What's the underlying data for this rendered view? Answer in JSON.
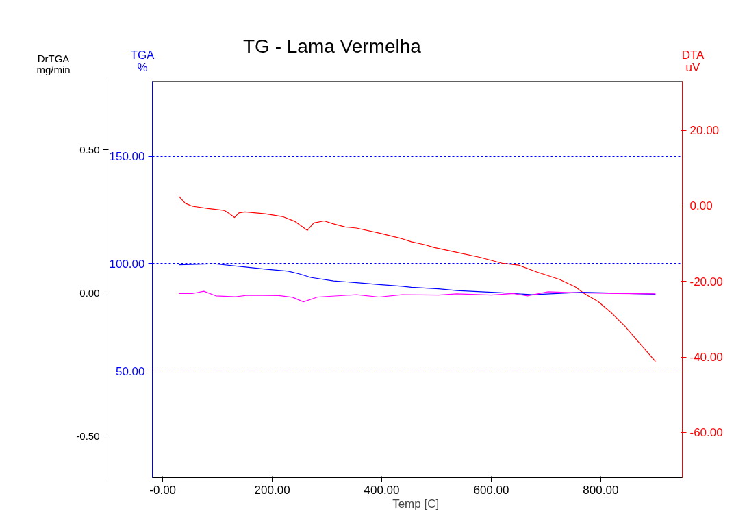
{
  "chart_data": {
    "type": "line",
    "title": "TG - Lama Vermelha",
    "xlabel": "Temp  [C]",
    "ylabel": "TGA\n%",
    "y2label": "DTA\nuV",
    "y3label": "DrTGA\nmg/min",
    "xlim": [
      -19,
      949
    ],
    "xticks": [
      {
        "value": 0,
        "label": "-0.00"
      },
      {
        "value": 200,
        "label": "200.00"
      },
      {
        "value": 400,
        "label": "400.00"
      },
      {
        "value": 600,
        "label": "600.00"
      },
      {
        "value": 800,
        "label": "800.00"
      }
    ],
    "ylim": [
      0.3,
      185
    ],
    "yticks": [
      {
        "value": 50,
        "label": "50.00"
      },
      {
        "value": 100,
        "label": "100.00"
      },
      {
        "value": 150,
        "label": "150.00"
      }
    ],
    "y2lim": [
      -72,
      33
    ],
    "y2ticks": [
      {
        "value": -60,
        "label": "-60.00"
      },
      {
        "value": -40,
        "label": "-40.00"
      },
      {
        "value": -20,
        "label": "-20.00"
      },
      {
        "value": 0,
        "label": "0.00"
      },
      {
        "value": 20,
        "label": "20.00"
      }
    ],
    "y3lim": [
      -0.646,
      0.74
    ],
    "y3ticks": [
      {
        "value": -0.5,
        "label": "-0.50"
      },
      {
        "value": 0,
        "label": "0.00"
      },
      {
        "value": 0.5,
        "label": "0.50"
      }
    ],
    "grid": "y",
    "series": [
      {
        "axis": "y2",
        "color": "#ff0000",
        "x": [
          29.6,
          41,
          54,
          83,
          112,
          122,
          131,
          139,
          150,
          187,
          220,
          241,
          264,
          276,
          295,
          312,
          333,
          354,
          395,
          437,
          454,
          479,
          495,
          537,
          579,
          620,
          650,
          683,
          725,
          754,
          770,
          795,
          820,
          845,
          870,
          900
        ],
        "values": [
          2.5,
          0.7,
          -0.1,
          -0.7,
          -1.2,
          -2.1,
          -3.1,
          -1.9,
          -1.6,
          -2.1,
          -2.9,
          -4.1,
          -6.5,
          -4.5,
          -4.0,
          -4.8,
          -5.6,
          -5.9,
          -7.2,
          -8.7,
          -9.5,
          -10.3,
          -11.0,
          -12.3,
          -13.6,
          -15.2,
          -15.7,
          -17.5,
          -19.5,
          -21.5,
          -23.2,
          -25.3,
          -28.4,
          -32.0,
          -36.2,
          -41.2
        ]
      },
      {
        "axis": "y",
        "color": "#0000ff",
        "x": [
          29.6,
          95,
          145,
          187,
          229,
          250,
          270,
          312,
          354,
          395,
          437,
          454,
          504,
          537,
          620,
          675,
          766,
          900
        ],
        "values": [
          99.5,
          99.9,
          98.6,
          97.5,
          96.5,
          95.2,
          93.6,
          92.0,
          91.2,
          90.3,
          89.5,
          89.0,
          88.3,
          87.5,
          86.5,
          85.6,
          86.7,
          85.8
        ]
      },
      {
        "axis": "y3",
        "color": "#ff00ff",
        "x": [
          29.6,
          54,
          75,
          97,
          133,
          154,
          212,
          237,
          257,
          283,
          354,
          395,
          437,
          504,
          537,
          600,
          641,
          666,
          704,
          745,
          829,
          900
        ],
        "values": [
          -0.002,
          -0.002,
          0.006,
          -0.01,
          -0.013,
          -0.008,
          -0.009,
          -0.015,
          -0.031,
          -0.014,
          -0.006,
          -0.014,
          -0.006,
          -0.007,
          -0.003,
          -0.007,
          -0.002,
          -0.01,
          0.004,
          0.001,
          -0.002,
          -0.003
        ]
      }
    ]
  }
}
